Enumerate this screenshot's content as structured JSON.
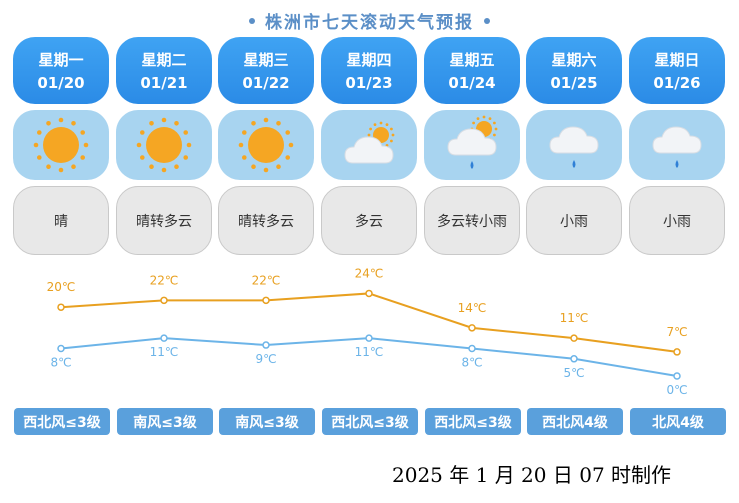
{
  "title": "株洲市七天滚动天气预报",
  "days": [
    {
      "weekday": "星期一",
      "date": "01/20",
      "icon": "sun-icon",
      "desc": "晴",
      "wind": "西北风≤3级"
    },
    {
      "weekday": "星期二",
      "date": "01/21",
      "icon": "sun-icon",
      "desc": "晴转多云",
      "wind": "南风≤3级"
    },
    {
      "weekday": "星期三",
      "date": "01/22",
      "icon": "sun-icon",
      "desc": "晴转多云",
      "wind": "南风≤3级"
    },
    {
      "weekday": "星期四",
      "date": "01/23",
      "icon": "partly-cloudy-icon",
      "desc": "多云",
      "wind": "西北风≤3级"
    },
    {
      "weekday": "星期五",
      "date": "01/24",
      "icon": "sun-cloud-rain-icon",
      "desc": "多云转小雨",
      "wind": "西北风≤3级"
    },
    {
      "weekday": "星期六",
      "date": "01/25",
      "icon": "rain-icon",
      "desc": "小雨",
      "wind": "西北风4级"
    },
    {
      "weekday": "星期日",
      "date": "01/26",
      "icon": "rain-icon",
      "desc": "小雨",
      "wind": "北风4级"
    }
  ],
  "chart_data": {
    "type": "line",
    "categories": [
      "01/20",
      "01/21",
      "01/22",
      "01/23",
      "01/24",
      "01/25",
      "01/26"
    ],
    "series": [
      {
        "values": [
          20,
          22,
          22,
          24,
          14,
          11,
          7
        ],
        "labels": [
          "20℃",
          "22℃",
          "22℃",
          "24℃",
          "14℃",
          "11℃",
          "7℃"
        ],
        "color": "#e8a020"
      },
      {
        "values": [
          8,
          11,
          9,
          11,
          8,
          5,
          0
        ],
        "labels": [
          "8℃",
          "11℃",
          "9℃",
          "11℃",
          "8℃",
          "5℃",
          "0℃"
        ],
        "color": "#6cb4e8"
      }
    ]
  },
  "colors": {
    "day_header": "#3fa3f3",
    "icon_bg": "#a8d4f0",
    "desc_bg": "#e8e8e8",
    "wind_bg": "#5aa0dc",
    "high": "#e8a020",
    "low": "#6cb4e8"
  },
  "footer": "2025 年 1 月 20 日 07 时制作"
}
